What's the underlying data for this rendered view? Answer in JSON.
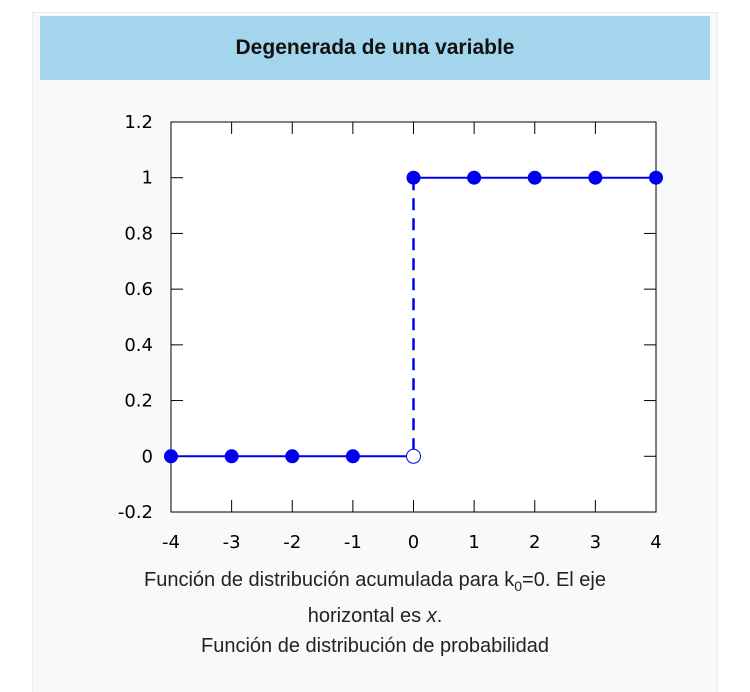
{
  "infobox": {
    "title": "Degenerada de una variable"
  },
  "caption": {
    "line1_pre": "Función de distribución acumulada para k",
    "line1_sub": "0",
    "line1_post": "=0. El eje",
    "line2_pre": "horizontal es ",
    "line2_var": "x",
    "line2_post": ".",
    "line3": "Función de distribución de probabilidad"
  },
  "chart_data": {
    "type": "line",
    "xlim": [
      -4,
      4
    ],
    "ylim": [
      -0.2,
      1.2
    ],
    "x_ticks": [
      "-4",
      "-3",
      "-2",
      "-1",
      "0",
      "1",
      "2",
      "3",
      "4"
    ],
    "y_ticks": [
      "1.2",
      "1",
      "0.8",
      "0.6",
      "0.4",
      "0.2",
      "0",
      "-0.2"
    ],
    "grid": false,
    "series": [
      {
        "x": [
          -4,
          -3,
          -2,
          -1,
          0
        ],
        "y": [
          0,
          0,
          0,
          0,
          0
        ],
        "color": "#0000ee",
        "open_end": true
      },
      {
        "x": [
          0,
          1,
          2,
          3,
          4
        ],
        "y": [
          1,
          1,
          1,
          1,
          1
        ],
        "color": "#0000ee"
      }
    ],
    "jump": {
      "x": 0,
      "from": 0,
      "to": 1,
      "style": "dashed"
    }
  }
}
